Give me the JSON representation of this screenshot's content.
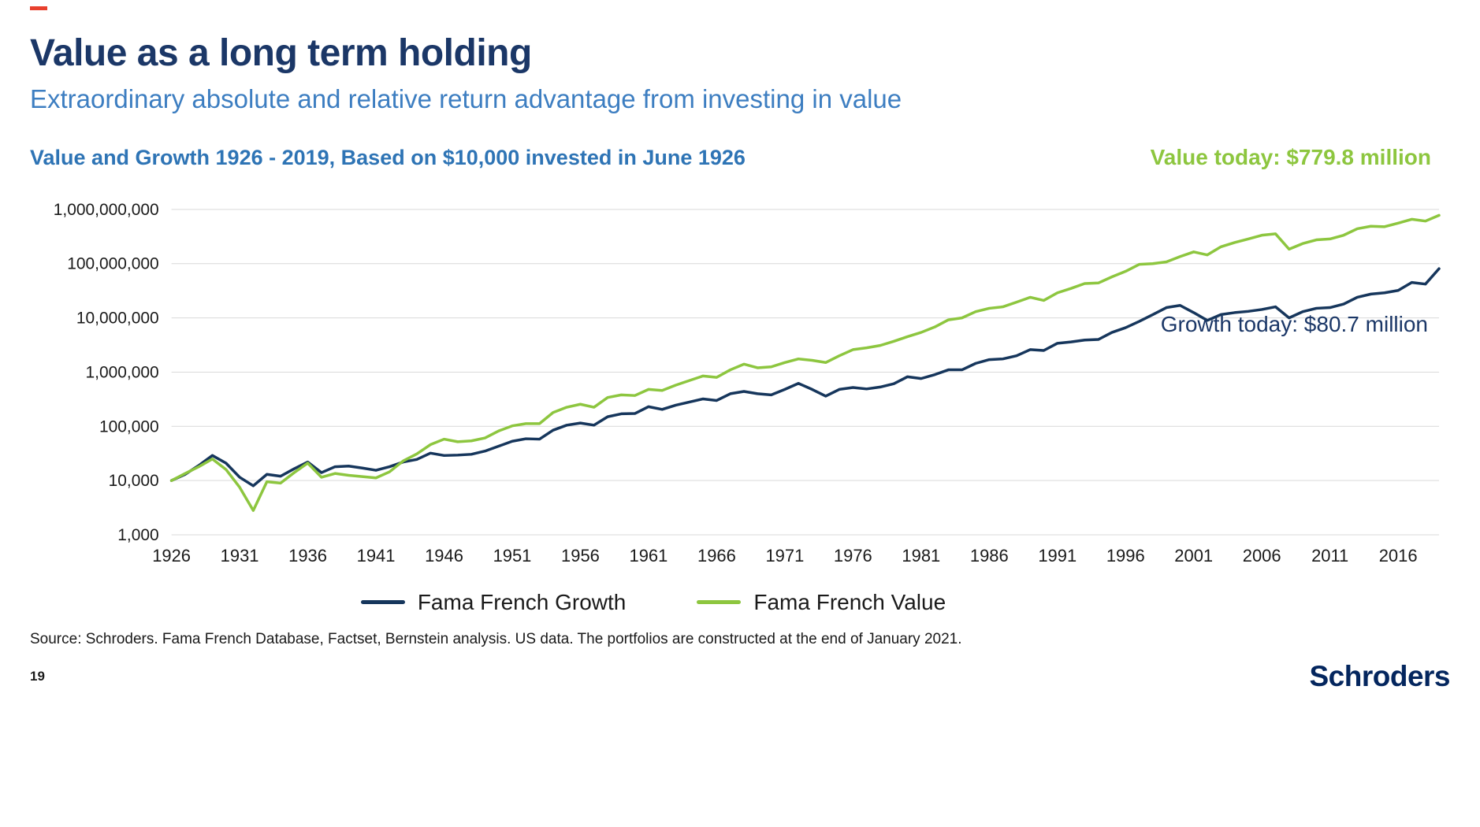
{
  "page": {
    "title": "Value as a long term holding",
    "subtitle": "Extraordinary absolute and relative return advantage from investing in value",
    "source": "Source: Schroders. Fama French Database, Factset, Bernstein analysis. US data. The portfolios are constructed at the end of January 2021.",
    "page_number": "19",
    "logo": "Schroders",
    "accent_color": "#e8402d"
  },
  "chart_data": {
    "type": "line",
    "title": "Value and Growth 1926 - 2019, Based on $10,000 invested in June 1926",
    "y_scale": "log",
    "grid": "horizontal",
    "legend_position": "bottom",
    "annotations": [
      {
        "text": "Value today: $779.8 million",
        "color": "#8dc63f",
        "series": "Fama French Value"
      },
      {
        "text": "Growth today: $80.7 million",
        "color": "#1b3767",
        "series": "Fama French Growth"
      }
    ],
    "y_ticks": [
      {
        "label": "1,000,000,000",
        "value": 1000000000
      },
      {
        "label": "100,000,000",
        "value": 100000000
      },
      {
        "label": "10,000,000",
        "value": 10000000
      },
      {
        "label": "1,000,000",
        "value": 1000000
      },
      {
        "label": "100,000",
        "value": 100000
      },
      {
        "label": "10,000",
        "value": 10000
      },
      {
        "label": "1,000",
        "value": 1000
      }
    ],
    "x_ticks": [
      1926,
      1931,
      1936,
      1941,
      1946,
      1951,
      1956,
      1961,
      1966,
      1971,
      1976,
      1981,
      1986,
      1991,
      1996,
      2001,
      2006,
      2011,
      2016
    ],
    "x_range": [
      1926,
      2019
    ],
    "years": [
      1926,
      1927,
      1928,
      1929,
      1930,
      1931,
      1932,
      1933,
      1934,
      1935,
      1936,
      1937,
      1938,
      1939,
      1940,
      1941,
      1942,
      1943,
      1944,
      1945,
      1946,
      1947,
      1948,
      1949,
      1950,
      1951,
      1952,
      1953,
      1954,
      1955,
      1956,
      1957,
      1958,
      1959,
      1960,
      1961,
      1962,
      1963,
      1964,
      1965,
      1966,
      1967,
      1968,
      1969,
      1970,
      1971,
      1972,
      1973,
      1974,
      1975,
      1976,
      1977,
      1978,
      1979,
      1980,
      1981,
      1982,
      1983,
      1984,
      1985,
      1986,
      1987,
      1988,
      1989,
      1990,
      1991,
      1992,
      1993,
      1994,
      1995,
      1996,
      1997,
      1998,
      1999,
      2000,
      2001,
      2002,
      2003,
      2004,
      2005,
      2006,
      2007,
      2008,
      2009,
      2010,
      2011,
      2012,
      2013,
      2014,
      2015,
      2016,
      2017,
      2018,
      2019
    ],
    "series": [
      {
        "name": "Fama French Growth",
        "color": "#16365c",
        "values": [
          10000,
          13000,
          19000,
          29000,
          21000,
          11500,
          8000,
          13000,
          12000,
          16500,
          22000,
          14000,
          18000,
          18500,
          17000,
          15500,
          18000,
          22000,
          24500,
          32000,
          29000,
          29500,
          30500,
          35000,
          43000,
          53000,
          59000,
          58000,
          85000,
          105000,
          115000,
          105000,
          150000,
          170000,
          172000,
          230000,
          205000,
          245000,
          280000,
          320000,
          300000,
          400000,
          440000,
          400000,
          380000,
          480000,
          620000,
          480000,
          360000,
          480000,
          520000,
          490000,
          530000,
          610000,
          820000,
          760000,
          900000,
          1100000,
          1100000,
          1450000,
          1700000,
          1750000,
          2000000,
          2600000,
          2500000,
          3400000,
          3600000,
          3900000,
          4000000,
          5400000,
          6600000,
          8600000,
          11500000,
          15500000,
          17000000,
          12500000,
          9000000,
          11500000,
          12500000,
          13200000,
          14300000,
          16000000,
          10000000,
          13000000,
          15000000,
          15500000,
          18000000,
          24000000,
          27500000,
          29000000,
          32000000,
          45000000,
          42000000,
          80700000
        ]
      },
      {
        "name": "Fama French Value",
        "color": "#8dc63f",
        "values": [
          10000,
          13500,
          18000,
          25000,
          16000,
          7500,
          2800,
          9500,
          9000,
          14000,
          21000,
          11500,
          13500,
          12500,
          11800,
          11200,
          14500,
          23000,
          31000,
          46000,
          58000,
          52000,
          54000,
          61000,
          82000,
          102000,
          112000,
          112000,
          180000,
          225000,
          255000,
          225000,
          340000,
          380000,
          370000,
          480000,
          460000,
          575000,
          700000,
          850000,
          800000,
          1100000,
          1400000,
          1200000,
          1250000,
          1500000,
          1750000,
          1650000,
          1500000,
          2000000,
          2600000,
          2800000,
          3100000,
          3700000,
          4500000,
          5400000,
          6800000,
          9200000,
          10000000,
          13000000,
          15000000,
          16000000,
          19500000,
          24000000,
          21000000,
          29000000,
          35000000,
          43000000,
          44000000,
          57000000,
          72000000,
          97000000,
          100000000,
          108000000,
          135000000,
          165000000,
          145000000,
          205000000,
          245000000,
          285000000,
          335000000,
          355000000,
          185000000,
          235000000,
          275000000,
          285000000,
          335000000,
          440000000,
          490000000,
          480000000,
          560000000,
          660000000,
          610000000,
          779800000
        ]
      }
    ],
    "final_values": {
      "value": 779800000,
      "growth": 80700000
    }
  }
}
